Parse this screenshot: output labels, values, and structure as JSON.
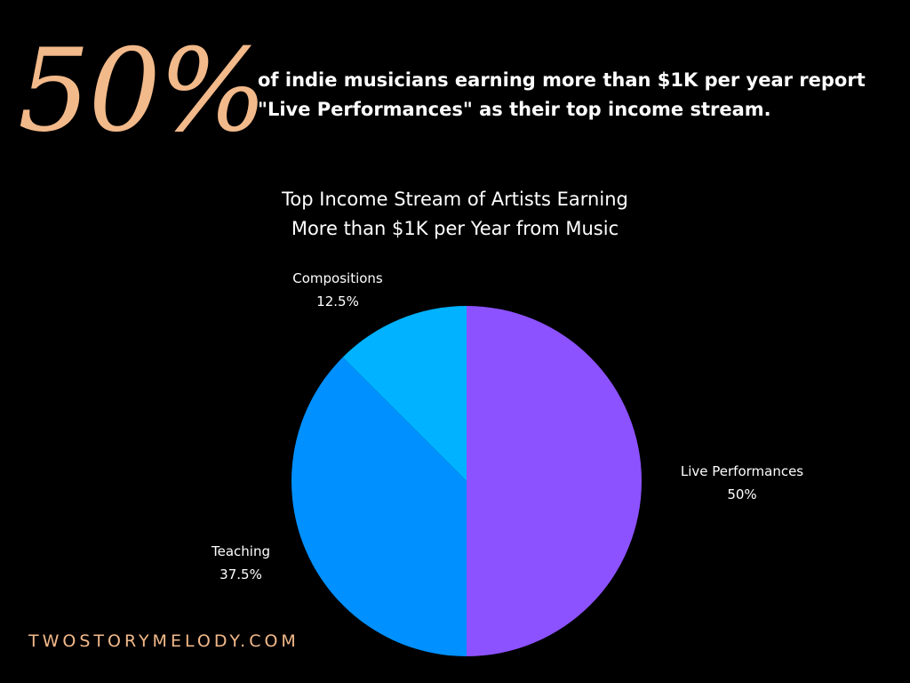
{
  "header": {
    "big_stat": "50%",
    "headline_line1": "of indie musicians earning more than $1K per year report",
    "headline_line2": "\"Live Performances\" as their top income stream."
  },
  "chart_data": {
    "type": "pie",
    "title_line1": "Top Income Stream of Artists Earning",
    "title_line2": "More than $1K per Year from Music",
    "slices": [
      {
        "label": "Live Performances",
        "value": 50,
        "value_label": "50%",
        "color": "#8c52ff"
      },
      {
        "label": "Teaching",
        "value": 37.5,
        "value_label": "37.5%",
        "color": "#0090ff"
      },
      {
        "label": "Compositions",
        "value": 12.5,
        "value_label": "12.5%",
        "color": "#00b2ff"
      }
    ]
  },
  "footer": {
    "site": "TWOSTORYMELODY.COM"
  },
  "colors": {
    "accent": "#f2b98a",
    "background": "#000000",
    "text": "#ffffff"
  }
}
